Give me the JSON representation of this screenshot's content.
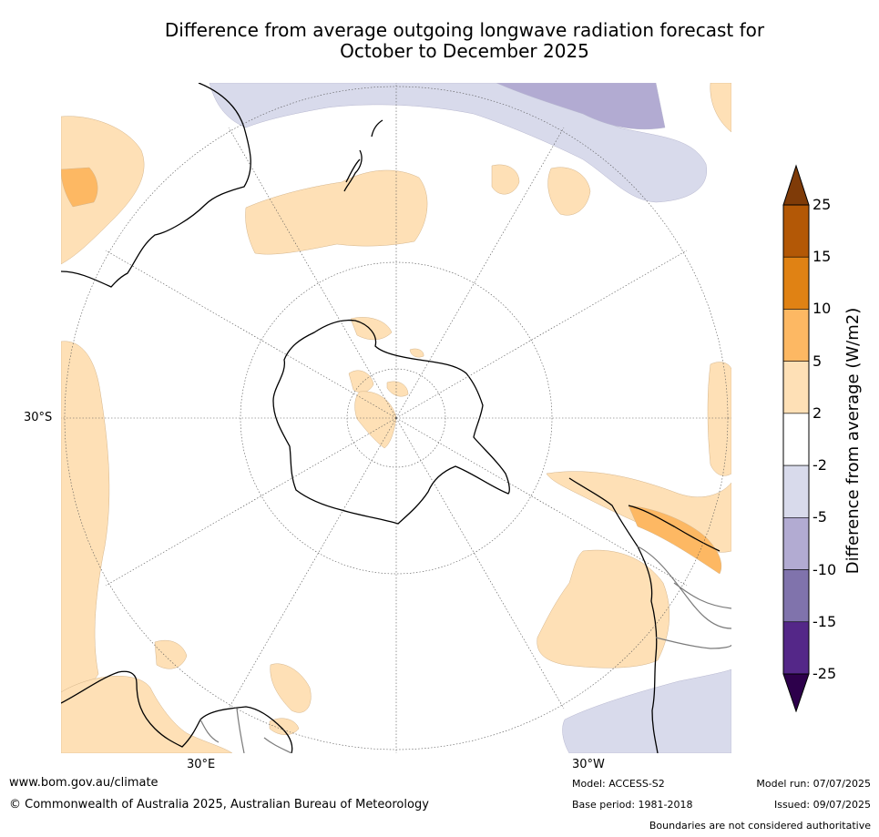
{
  "title": {
    "line1": "Difference from average outgoing longwave radiation forecast for",
    "line2": "October to December 2025"
  },
  "map": {
    "projection": "south polar stereographic",
    "graticule_labels": {
      "lat": "30°S",
      "lon_east": "30°E",
      "lon_west": "30°W"
    }
  },
  "colorbar": {
    "label": "Difference from average (W/m2)",
    "ticks": [
      "25",
      "15",
      "10",
      "5",
      "2",
      "-2",
      "-5",
      "-10",
      "-15",
      "-25"
    ],
    "colors": [
      "#7f3b08",
      "#b35806",
      "#e08214",
      "#fdb863",
      "#fee0b6",
      "#ffffff",
      "#d8daeb",
      "#b2abd2",
      "#8073ac",
      "#542788",
      "#2d004b"
    ]
  },
  "footer": {
    "website": "www.bom.gov.au/climate",
    "copyright": "© Commonwealth of Australia 2025, Australian Bureau of Meteorology",
    "model": "Model: ACCESS-S2",
    "base_period": "Base period: 1981-2018",
    "model_run": "Model run: 07/07/2025",
    "issued": "Issued: 09/07/2025",
    "disclaimer": "Boundaries are not considered authoritative"
  }
}
